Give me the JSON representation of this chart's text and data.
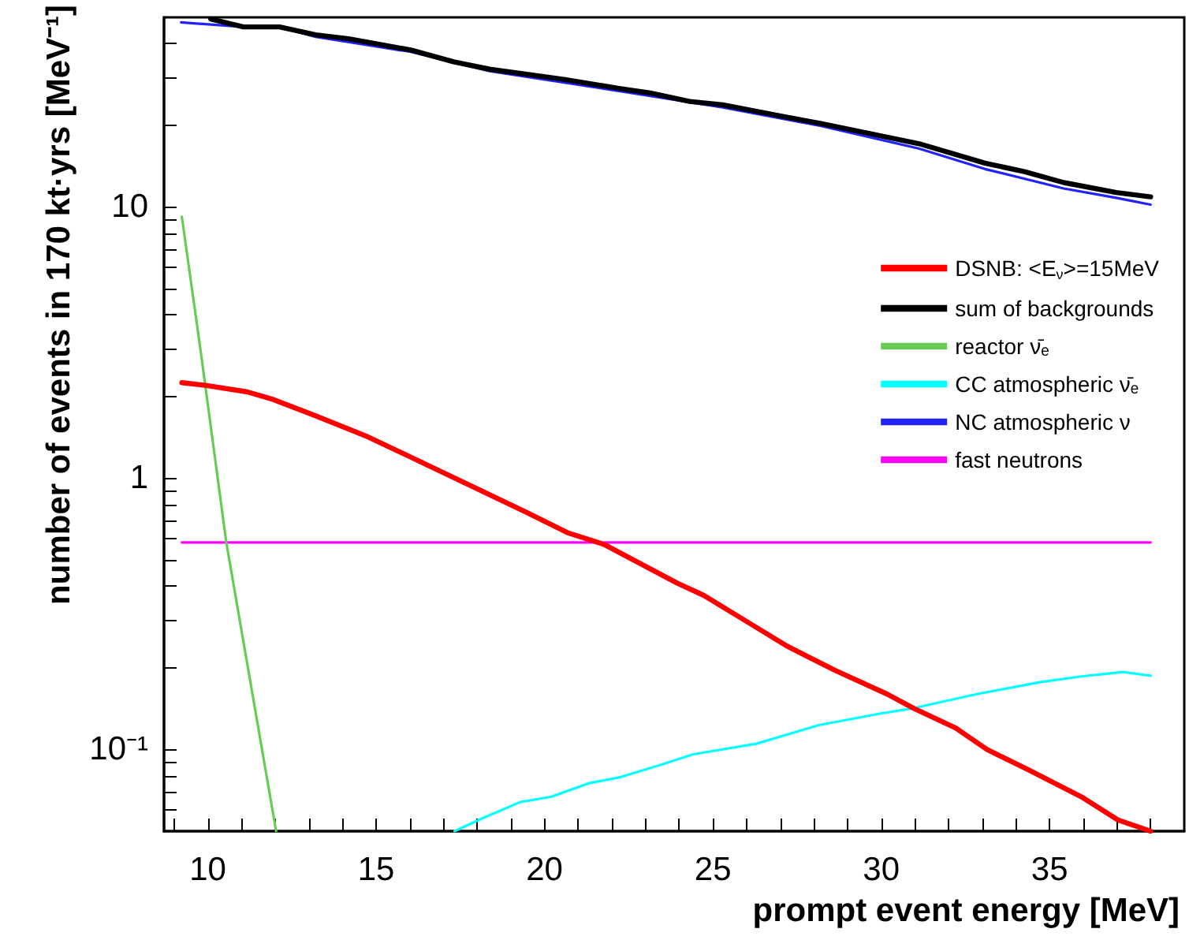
{
  "chart_data": {
    "type": "line",
    "xlabel": "prompt event energy [MeV]",
    "ylabel": "number of events in 170 kt·yrs [MeV⁻¹]",
    "log": "y",
    "grid": false,
    "legend": "top right",
    "marker": "none",
    "line_style": "solid",
    "xlim": [
      8.7,
      39
    ],
    "ylim": [
      0.05,
      50
    ],
    "xticks": [
      {
        "value": 9,
        "label": null
      },
      10,
      {
        "value": 11,
        "label": null
      },
      {
        "value": 12,
        "label": null
      },
      {
        "value": 13,
        "label": null
      },
      {
        "value": 14,
        "label": null
      },
      15,
      {
        "value": 16,
        "label": null
      },
      {
        "value": 17,
        "label": null
      },
      {
        "value": 18,
        "label": null
      },
      {
        "value": 19,
        "label": null
      },
      20,
      {
        "value": 21,
        "label": null
      },
      {
        "value": 22,
        "label": null
      },
      {
        "value": 23,
        "label": null
      },
      {
        "value": 24,
        "label": null
      },
      25,
      {
        "value": 26,
        "label": null
      },
      {
        "value": 27,
        "label": null
      },
      {
        "value": 28,
        "label": null
      },
      {
        "value": 29,
        "label": null
      },
      30,
      {
        "value": 31,
        "label": null
      },
      {
        "value": 32,
        "label": null
      },
      {
        "value": 33,
        "label": null
      },
      {
        "value": 34,
        "label": null
      },
      35,
      {
        "value": 36,
        "label": null
      },
      {
        "value": 37,
        "label": null
      },
      {
        "value": 38,
        "label": null
      }
    ],
    "yticks": [
      {
        "value": 0.06,
        "label": null
      },
      {
        "value": 0.07,
        "label": null
      },
      {
        "value": 0.08,
        "label": null
      },
      {
        "value": 0.09,
        "label": null
      },
      {
        "value": 0.1,
        "label": "10⁻¹"
      },
      {
        "value": 0.2,
        "label": null
      },
      {
        "value": 0.3,
        "label": null
      },
      {
        "value": 0.4,
        "label": null
      },
      {
        "value": 0.5,
        "label": null
      },
      {
        "value": 0.6,
        "label": null
      },
      {
        "value": 0.7,
        "label": null
      },
      {
        "value": 0.8,
        "label": null
      },
      {
        "value": 0.9,
        "label": null
      },
      1,
      {
        "value": 2,
        "label": null
      },
      {
        "value": 3,
        "label": null
      },
      {
        "value": 4,
        "label": null
      },
      {
        "value": 5,
        "label": null
      },
      {
        "value": 6,
        "label": null
      },
      {
        "value": 7,
        "label": null
      },
      {
        "value": 8,
        "label": null
      },
      {
        "value": 9,
        "label": null
      },
      10,
      {
        "value": 20,
        "label": null
      },
      {
        "value": 30,
        "label": null
      },
      {
        "value": 40,
        "label": null
      }
    ],
    "series": [
      {
        "name": "DSNB: <E$_{ν}$>=15MeV",
        "color": "#ff0000",
        "x": [
          9.23,
          9.93,
          11.18,
          11.95,
          13.2,
          14.76,
          16.32,
          17.88,
          19.45,
          20.68,
          21.77,
          23.95,
          24.73,
          26.13,
          27.22,
          28.62,
          30.18,
          30.96,
          32.21,
          33.14,
          34.38,
          35.94,
          37.03,
          38
        ],
        "values": [
          2.25,
          2.2,
          2.08,
          1.95,
          1.7,
          1.42,
          1.15,
          0.93,
          0.75,
          0.63,
          0.57,
          0.41,
          0.37,
          0.29,
          0.24,
          0.196,
          0.16,
          0.142,
          0.12,
          0.1,
          0.084,
          0.067,
          0.055,
          0.05
        ]
      },
      {
        "name": "sum of backgrounds",
        "color": "#000000",
        "x": [
          10.09,
          11.06,
          12.13,
          13.2,
          14.18,
          16.03,
          17.3,
          18.37,
          20.61,
          22.17,
          23.14,
          24.31,
          25.29,
          27.23,
          28.21,
          31.13,
          33.08,
          34.25,
          35.42,
          36.98,
          38
        ],
        "values": [
          49.3,
          46.1,
          46.1,
          43.1,
          41.7,
          37.9,
          34.3,
          32.2,
          29.5,
          27.4,
          26.3,
          24.5,
          23.8,
          21.4,
          20.3,
          17.1,
          14.5,
          13.5,
          12.3,
          11.3,
          10.9
        ]
      },
      {
        "name": "reactor ν̄ₑ",
        "color": "#66cc55",
        "x": [
          9.23,
          9.78,
          10.55,
          12.03
        ],
        "values": [
          9.2,
          3.0,
          0.58,
          0.05
        ]
      },
      {
        "name": "CC atmospheric ν̄ₑ",
        "color": "#00ffff",
        "x": [
          17.33,
          18.19,
          19.28,
          20.21,
          21.3,
          22.23,
          23.48,
          24.42,
          26.29,
          28.15,
          30.02,
          30.96,
          32.83,
          34.7,
          35.94,
          37.19,
          38
        ],
        "values": [
          0.05,
          0.056,
          0.064,
          0.067,
          0.075,
          0.079,
          0.088,
          0.096,
          0.105,
          0.123,
          0.136,
          0.142,
          0.16,
          0.177,
          0.186,
          0.193,
          0.187
        ]
      },
      {
        "name": "NC atmospheric ν",
        "color": "#2222ff",
        "x": [
          9.21,
          11.06,
          12.13,
          13.2,
          16.03,
          18.37,
          22.17,
          25.29,
          28.21,
          31.13,
          33.08,
          35.42,
          36.98,
          38
        ],
        "values": [
          47.9,
          46.1,
          46.1,
          42.4,
          37.3,
          31.7,
          26.8,
          23.3,
          19.9,
          16.4,
          13.8,
          11.7,
          10.8,
          10.2
        ]
      },
      {
        "name": "fast neutrons",
        "color": "#ff00ff",
        "x": [
          9.23,
          38
        ],
        "values": [
          0.58,
          0.58
        ]
      }
    ]
  }
}
